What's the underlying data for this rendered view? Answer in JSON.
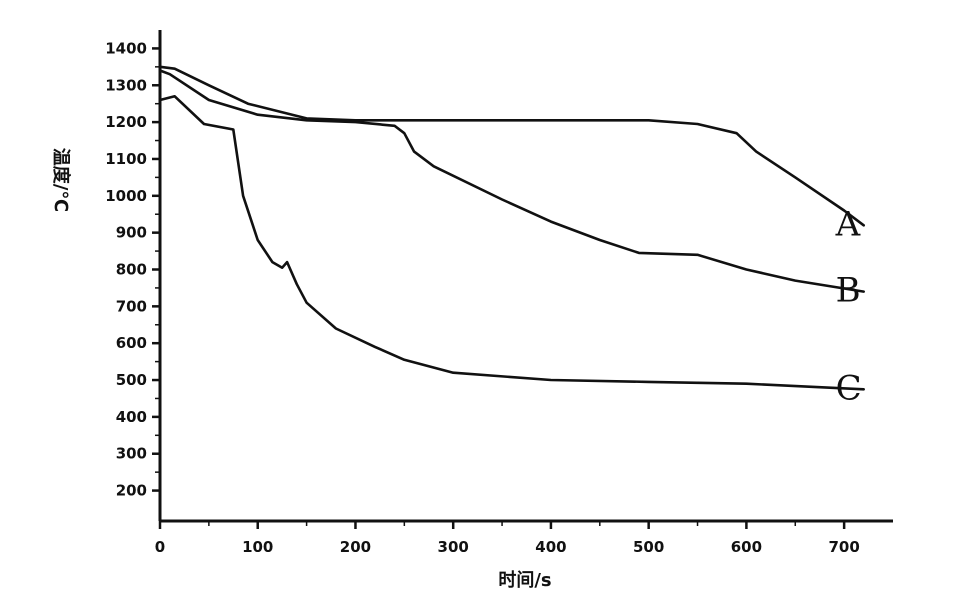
{
  "chart_data": {
    "type": "line",
    "xlabel": "时间/s",
    "ylabel": "温度/℃",
    "xlim": [
      0,
      750
    ],
    "ylim": [
      150,
      1450
    ],
    "x_ticks": [
      0,
      100,
      200,
      300,
      400,
      500,
      600,
      700
    ],
    "y_ticks": [
      200,
      300,
      400,
      500,
      600,
      700,
      800,
      900,
      1000,
      1100,
      1200,
      1300,
      1400
    ],
    "grid": false,
    "series": [
      {
        "name": "A",
        "x": [
          0,
          15,
          50,
          90,
          150,
          200,
          300,
          400,
          500,
          550,
          590,
          610,
          650,
          700,
          720
        ],
        "y": [
          1350,
          1345,
          1300,
          1250,
          1210,
          1205,
          1205,
          1205,
          1205,
          1195,
          1170,
          1120,
          1050,
          960,
          920
        ]
      },
      {
        "name": "B",
        "x": [
          0,
          10,
          50,
          100,
          150,
          200,
          240,
          250,
          260,
          280,
          350,
          400,
          450,
          490,
          550,
          600,
          650,
          720
        ],
        "y": [
          1340,
          1330,
          1260,
          1220,
          1205,
          1200,
          1190,
          1170,
          1120,
          1080,
          990,
          930,
          880,
          845,
          840,
          800,
          770,
          740
        ]
      },
      {
        "name": "C",
        "x": [
          0,
          15,
          45,
          75,
          85,
          100,
          115,
          125,
          130,
          140,
          150,
          180,
          220,
          250,
          300,
          400,
          500,
          600,
          720
        ],
        "y": [
          1260,
          1270,
          1195,
          1180,
          1000,
          880,
          820,
          805,
          820,
          760,
          710,
          640,
          590,
          555,
          520,
          500,
          495,
          490,
          475
        ]
      }
    ]
  }
}
